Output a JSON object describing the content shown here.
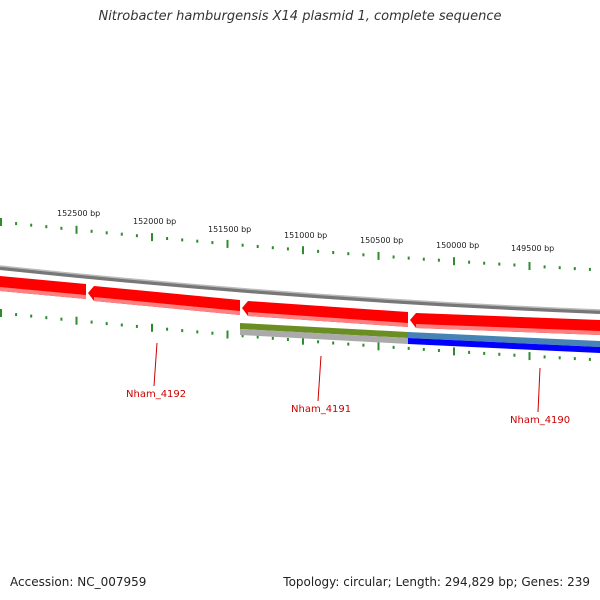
{
  "title": "Nitrobacter hamburgensis X14 plasmid 1, complete sequence",
  "footer": {
    "accession": "Accession: NC_007959",
    "summary": "Topology: circular; Length: 294,829 bp; Genes: 239"
  },
  "ruler": {
    "labels": [
      "152500 bp",
      "152000 bp",
      "151500 bp",
      "151000 bp",
      "150500 bp",
      "150000 bp",
      "149500 bp"
    ],
    "tick_color": "#2e8b2e"
  },
  "genes": [
    {
      "name": "Nham_4192",
      "color": "#ff0000"
    },
    {
      "name": "Nham_4191",
      "color": "#ff0000"
    },
    {
      "name": "Nham_4190",
      "color": "#ff0000"
    }
  ],
  "tracks": {
    "backbone_color": "#888888",
    "gc_colors": [
      "#6b8e23",
      "#aaaaaa"
    ],
    "skew_colors": [
      "#4682b4",
      "#0000ff"
    ]
  }
}
